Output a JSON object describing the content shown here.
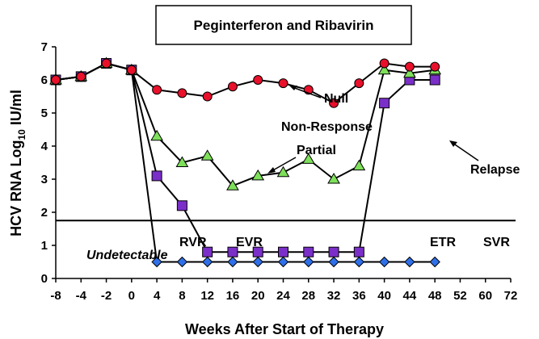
{
  "chart_data": {
    "type": "line",
    "title": "Peginterferon and Ribavirin",
    "xlabel": "Weeks After Start of Therapy",
    "ylabel": "HCV RNA Log",
    "ylabel_sub": "10",
    "ylabel_suffix": " IU/ml",
    "categories": [
      "-8",
      "-4",
      "-2",
      "0",
      "4",
      "8",
      "12",
      "16",
      "20",
      "24",
      "28",
      "32",
      "36",
      "40",
      "44",
      "48",
      "52",
      "60",
      "72"
    ],
    "ylim": [
      0,
      7
    ],
    "yticks": [
      "0",
      "1",
      "2",
      "3",
      "4",
      "5",
      "6",
      "7"
    ],
    "grid": false,
    "threshold": 1.75,
    "series": [
      {
        "label_key": "null",
        "color": "#e8102a",
        "marker": "circle",
        "points": [
          [
            0,
            6.0
          ],
          [
            1,
            6.1
          ],
          [
            2,
            6.5
          ],
          [
            3,
            6.3
          ],
          [
            4,
            5.7
          ],
          [
            5,
            5.6
          ],
          [
            6,
            5.5
          ],
          [
            7,
            5.8
          ],
          [
            8,
            6.0
          ],
          [
            9,
            5.9
          ],
          [
            10,
            5.7
          ],
          [
            11,
            5.3
          ],
          [
            12,
            5.9
          ],
          [
            13,
            6.5
          ],
          [
            14,
            6.4
          ],
          [
            15,
            6.4
          ]
        ]
      },
      {
        "label_key": "partial",
        "color": "#7ee05a",
        "marker": "triangle",
        "points": [
          [
            0,
            6.0
          ],
          [
            1,
            6.1
          ],
          [
            2,
            6.5
          ],
          [
            3,
            6.3
          ],
          [
            4,
            4.3
          ],
          [
            5,
            3.5
          ],
          [
            6,
            3.7
          ],
          [
            7,
            2.8
          ],
          [
            8,
            3.1
          ],
          [
            9,
            3.2
          ],
          [
            10,
            3.6
          ],
          [
            11,
            3.0
          ],
          [
            12,
            3.4
          ],
          [
            13,
            6.3
          ],
          [
            14,
            6.2
          ],
          [
            15,
            6.3
          ]
        ]
      },
      {
        "label_key": "relapse",
        "color": "#7b2fc9",
        "marker": "square",
        "points": [
          [
            0,
            6.0
          ],
          [
            1,
            6.1
          ],
          [
            2,
            6.5
          ],
          [
            3,
            6.3
          ],
          [
            4,
            3.1
          ],
          [
            5,
            2.2
          ],
          [
            6,
            0.8
          ],
          [
            7,
            0.8
          ],
          [
            8,
            0.8
          ],
          [
            9,
            0.8
          ],
          [
            10,
            0.8
          ],
          [
            11,
            0.8
          ],
          [
            12,
            0.8
          ],
          [
            13,
            5.3
          ],
          [
            14,
            6.0
          ],
          [
            15,
            6.0
          ]
        ]
      },
      {
        "label_key": "svr",
        "color": "#2f6fe8",
        "marker": "diamond",
        "points": [
          [
            0,
            6.0
          ],
          [
            1,
            6.1
          ],
          [
            2,
            6.5
          ],
          [
            3,
            6.3
          ],
          [
            4,
            0.5
          ],
          [
            5,
            0.5
          ],
          [
            6,
            0.5
          ],
          [
            7,
            0.5
          ],
          [
            8,
            0.5
          ],
          [
            9,
            0.5
          ],
          [
            10,
            0.5
          ],
          [
            11,
            0.5
          ],
          [
            12,
            0.5
          ],
          [
            13,
            0.5
          ],
          [
            14,
            0.5
          ],
          [
            15,
            0.5
          ]
        ]
      }
    ],
    "annotations": {
      "null_label": "Null",
      "nonresponse_label": "Non-Response",
      "partial_label": "Partial",
      "relapse_label": "Relapse",
      "undetectable_label": "Undetectable",
      "rvr": "RVR",
      "evr": "EVR",
      "etr": "ETR",
      "svr": "SVR"
    }
  }
}
